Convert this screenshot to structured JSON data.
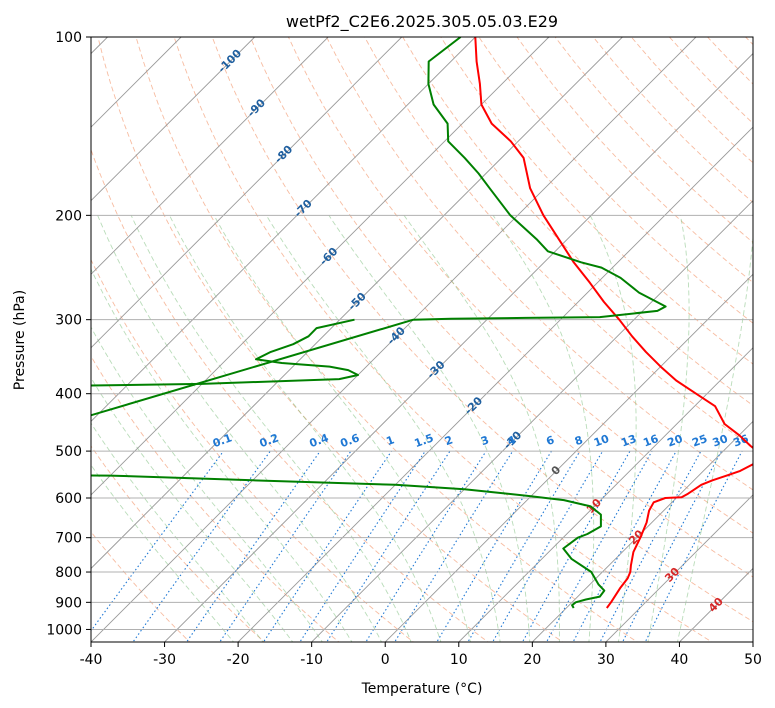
{
  "chart_data": {
    "type": "line",
    "title": "wetPf2_C2E6.2025.305.05.03.E29",
    "xlabel": "Temperature (°C)",
    "ylabel": "Pressure (hPa)",
    "xlim": [
      -40,
      50
    ],
    "ylim": [
      1050,
      100
    ],
    "y_scale": "log",
    "x_ticks": [
      -40,
      -30,
      -20,
      -10,
      0,
      10,
      20,
      30,
      40,
      50
    ],
    "y_ticks": [
      100,
      200,
      300,
      400,
      500,
      600,
      700,
      800,
      900,
      1000
    ],
    "grid": true,
    "series": [
      {
        "color": "#ff0000",
        "points": [
          [
            25.5,
            920
          ],
          [
            25.3,
            900
          ],
          [
            24.6,
            850
          ],
          [
            24.3,
            820
          ],
          [
            23.8,
            800
          ],
          [
            23.0,
            780
          ],
          [
            21.5,
            740
          ],
          [
            20.5,
            700
          ],
          [
            19.3,
            660
          ],
          [
            18.0,
            630
          ],
          [
            17.5,
            610
          ],
          [
            18.5,
            600
          ],
          [
            20.6,
            598
          ],
          [
            21.0,
            590
          ],
          [
            21.3,
            580
          ],
          [
            21.6,
            570
          ],
          [
            22.5,
            560
          ],
          [
            23.8,
            550
          ],
          [
            25.0,
            540
          ],
          [
            25.9,
            525
          ],
          [
            26.0,
            515
          ],
          [
            24.6,
            500
          ],
          [
            23.0,
            490
          ],
          [
            20.0,
            470
          ],
          [
            16.5,
            450
          ],
          [
            12.8,
            420
          ],
          [
            8.5,
            400
          ],
          [
            4.0,
            380
          ],
          [
            0.0,
            360
          ],
          [
            -4.0,
            340
          ],
          [
            -8.0,
            320
          ],
          [
            -12.0,
            300
          ],
          [
            -16.5,
            280
          ],
          [
            -21.0,
            260
          ],
          [
            -26.0,
            240
          ],
          [
            -31.0,
            220
          ],
          [
            -36.5,
            200
          ],
          [
            -42.0,
            180
          ],
          [
            -47.0,
            160
          ],
          [
            -51.0,
            150
          ],
          [
            -56.0,
            140
          ],
          [
            -60.0,
            130
          ],
          [
            -63.0,
            120
          ],
          [
            -66.5,
            110
          ],
          [
            -70.0,
            100
          ]
        ]
      },
      {
        "color": "#008000",
        "points": [
          [
            21.0,
            920
          ],
          [
            20.4,
            910
          ],
          [
            20.5,
            900
          ],
          [
            21.5,
            890
          ],
          [
            23.0,
            880
          ],
          [
            22.8,
            860
          ],
          [
            21.2,
            840
          ],
          [
            18.5,
            800
          ],
          [
            14.0,
            760
          ],
          [
            11.5,
            730
          ],
          [
            12.0,
            700
          ],
          [
            12.8,
            690
          ],
          [
            13.6,
            670
          ],
          [
            12.0,
            640
          ],
          [
            9.5,
            620
          ],
          [
            5.0,
            605
          ],
          [
            -0.5,
            595
          ],
          [
            -3.5,
            590
          ],
          [
            -10.0,
            580
          ],
          [
            -20.0,
            570
          ],
          [
            -40.0,
            560
          ],
          [
            -60.0,
            550
          ],
          [
            -90.0,
            548
          ],
          [
            -40.0,
            300
          ],
          [
            -35.0,
            299
          ],
          [
            -25.0,
            298
          ],
          [
            -15.0,
            297
          ],
          [
            -8.0,
            290
          ],
          [
            -7.5,
            285
          ],
          [
            -13.0,
            270
          ],
          [
            -17.5,
            255
          ],
          [
            -21.5,
            245
          ],
          [
            -25.0,
            240
          ],
          [
            -31.0,
            230
          ],
          [
            -34.0,
            220
          ],
          [
            -41.0,
            200
          ],
          [
            -47.5,
            180
          ],
          [
            -51.0,
            170
          ],
          [
            -55.0,
            160
          ],
          [
            -59.5,
            150
          ],
          [
            -62.0,
            140
          ],
          [
            -66.5,
            130
          ],
          [
            -70.0,
            120
          ],
          [
            -73.0,
            110
          ],
          [
            -72.0,
            100
          ]
        ]
      },
      {
        "color": "#008000",
        "points": [
          [
            -90.0,
            390
          ],
          [
            -60.0,
            385
          ],
          [
            -42.0,
            378
          ],
          [
            -40.0,
            372
          ],
          [
            -42.0,
            365
          ],
          [
            -45.0,
            360
          ],
          [
            -52.0,
            355
          ],
          [
            -56.0,
            350
          ],
          [
            -55.0,
            340
          ],
          [
            -53.0,
            330
          ],
          [
            -52.0,
            320
          ],
          [
            -52.0,
            310
          ],
          [
            -48.0,
            300
          ]
        ]
      }
    ],
    "isotherm_labels": [
      "-100",
      "-90",
      "-80",
      "-70",
      "-60",
      "-50",
      "-40",
      "-30",
      "-20",
      "-10",
      "0",
      "10",
      "20",
      "30",
      "40"
    ],
    "mixing_ratio_labels": [
      "0.1",
      "0.2",
      "0.4",
      "0.6",
      "1",
      "1.5",
      "2",
      "3",
      "4",
      "6",
      "8",
      "10",
      "13",
      "16",
      "20",
      "25",
      "30",
      "36"
    ]
  }
}
